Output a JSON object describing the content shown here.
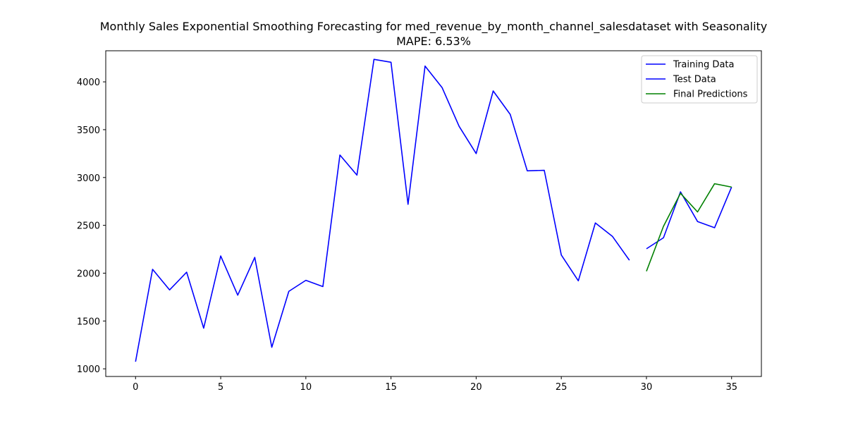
{
  "chart_data": {
    "type": "line",
    "title": "Monthly Sales Exponential Smoothing Forecasting for med_revenue_by_month_channel_salesdataset with Seasonality",
    "subtitle": "MAPE: 6.53%",
    "xlabel": "",
    "ylabel": "",
    "xlim": [
      -1.75,
      36.75
    ],
    "ylim": [
      920,
      4325
    ],
    "xticks": [
      0,
      5,
      10,
      15,
      20,
      25,
      30,
      35
    ],
    "yticks": [
      1000,
      1500,
      2000,
      2500,
      3000,
      3500,
      4000
    ],
    "grid": false,
    "legend_position": "top-right",
    "series": [
      {
        "name": "Training Data",
        "color": "#0000ff",
        "x": [
          0,
          1,
          2,
          3,
          4,
          5,
          6,
          7,
          8,
          9,
          10,
          11,
          12,
          13,
          14,
          15,
          16,
          17,
          18,
          19,
          20,
          21,
          22,
          23,
          24,
          25,
          26,
          27,
          28,
          29
        ],
        "y": [
          1075,
          2040,
          1825,
          2010,
          1425,
          2180,
          1770,
          2165,
          1225,
          1810,
          1925,
          1860,
          3235,
          3025,
          4235,
          4205,
          2720,
          4165,
          3940,
          3535,
          3250,
          3905,
          3660,
          3070,
          3075,
          2190,
          1920,
          2525,
          2385,
          2135
        ]
      },
      {
        "name": "Test Data",
        "color": "#0000ff",
        "x": [
          30,
          31,
          32,
          33,
          34,
          35
        ],
        "y": [
          2255,
          2370,
          2850,
          2540,
          2475,
          2900
        ]
      },
      {
        "name": "Final Predictions",
        "color": "#008000",
        "x": [
          30,
          31,
          32,
          33,
          34,
          35
        ],
        "y": [
          2020,
          2490,
          2835,
          2640,
          2935,
          2900
        ]
      }
    ]
  }
}
